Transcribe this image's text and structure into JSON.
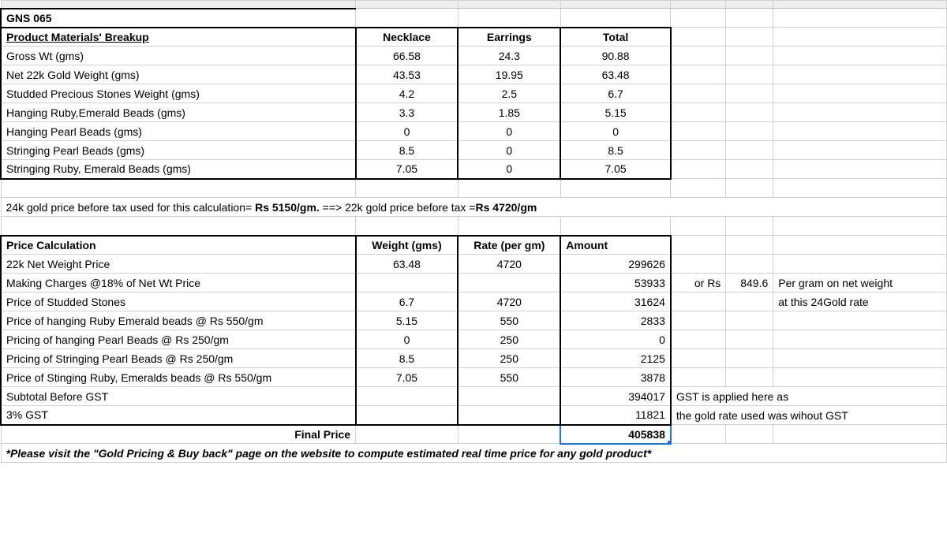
{
  "colWidths": {
    "A": 450,
    "B": 130,
    "C": 130,
    "D": 140,
    "E": 70,
    "F": 60,
    "G": 220
  },
  "title": "GNS 065",
  "materials": {
    "header": {
      "label": "Product Materials' Breakup",
      "col1": "Necklace",
      "col2": "Earrings",
      "col3": "Total"
    },
    "rows": [
      {
        "label": "Gross Wt (gms)",
        "c1": "66.58",
        "c2": "24.3",
        "c3": "90.88"
      },
      {
        "label": "Net 22k Gold Weight (gms)",
        "c1": "43.53",
        "c2": "19.95",
        "c3": "63.48"
      },
      {
        "label": "Studded Precious Stones Weight (gms)",
        "c1": "4.2",
        "c2": "2.5",
        "c3": "6.7"
      },
      {
        "label": "Hanging Ruby,Emerald Beads (gms)",
        "c1": "3.3",
        "c2": "1.85",
        "c3": "5.15"
      },
      {
        "label": "Hanging Pearl Beads (gms)",
        "c1": "0",
        "c2": "0",
        "c3": "0"
      },
      {
        "label": "Stringing Pearl Beads (gms)",
        "c1": "8.5",
        "c2": "0",
        "c3": "8.5"
      },
      {
        "label": "Stringing Ruby, Emerald Beads (gms)",
        "c1": "7.05",
        "c2": "0",
        "c3": "7.05"
      }
    ]
  },
  "gold_note": {
    "prefix": "24k gold price before tax used for this calculation= ",
    "val1": "Rs 5150/gm.",
    "mid": " ==> 22k gold price before tax =",
    "val2": "Rs 4720/gm"
  },
  "pricing": {
    "header": {
      "label": "Price Calculation",
      "col1": "Weight (gms)",
      "col2": "Rate (per gm)",
      "col3": "Amount"
    },
    "rows": [
      {
        "label": "22k Net Weight Price",
        "c1": "63.48",
        "c2": "4720",
        "c3": "299626"
      },
      {
        "label": " Making Charges @18% of Net Wt Price",
        "c1": "",
        "c2": "",
        "c3": "53933"
      },
      {
        "label": "Price of Studded Stones",
        "c1": "6.7",
        "c2": "4720",
        "c3": "31624"
      },
      {
        "label": "Price of hanging Ruby Emerald beads @ Rs 550/gm",
        "c1": "5.15",
        "c2": "550",
        "c3": "2833"
      },
      {
        "label": "Pricing of hanging Pearl Beads @ Rs 250/gm",
        "c1": "0",
        "c2": "250",
        "c3": "0"
      },
      {
        "label": "Pricing of Stringing Pearl Beads @ Rs 250/gm",
        "c1": "8.5",
        "c2": "250",
        "c3": "2125"
      },
      {
        "label": "Price of Stinging Ruby, Emeralds beads @ Rs 550/gm",
        "c1": "7.05",
        "c2": "550",
        "c3": "3878"
      },
      {
        "label": " Subtotal Before GST",
        "c1": "",
        "c2": "",
        "c3": "394017"
      },
      {
        "label": " 3% GST",
        "c1": "",
        "c2": "",
        "c3": "11821"
      }
    ],
    "final": {
      "label": "Final Price",
      "amount": "405838"
    }
  },
  "side_notes": {
    "n1a": "or Rs",
    "n1b": "849.6",
    "n1c": "Per gram on net weight",
    "n2": "at this 24Gold rate",
    "n3": "GST is applied here as",
    "n4": "the gold rate used was wihout GST"
  },
  "footer": "*Please visit the \"Gold Pricing & Buy back\" page on the website to compute estimated real time price for any gold product*"
}
